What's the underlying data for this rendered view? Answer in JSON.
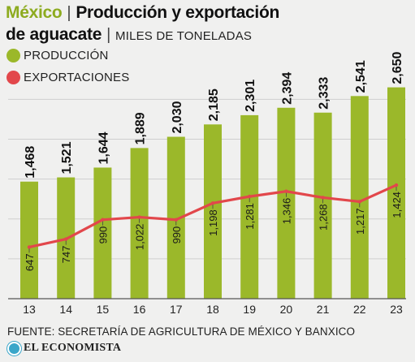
{
  "header": {
    "country": "México",
    "title_part1": "Producción y exportación",
    "title_part2": "de aguacate",
    "unit": "MILES DE TONELADAS"
  },
  "colors": {
    "production": "#9bb82a",
    "exports": "#e2474b",
    "accent": "#8dab1f"
  },
  "legend": [
    {
      "label": "PRODUCCIÓN",
      "color": "#9bb82a"
    },
    {
      "label": "EXPORTACIONES",
      "color": "#e2474b"
    }
  ],
  "chart_data": {
    "type": "bar",
    "categories": [
      "13",
      "14",
      "15",
      "16",
      "17",
      "18",
      "19",
      "20",
      "21",
      "22",
      "23"
    ],
    "series": [
      {
        "name": "PRODUCCIÓN",
        "type": "bar",
        "values": [
          1468,
          1521,
          1644,
          1889,
          2030,
          2185,
          2301,
          2394,
          2333,
          2541,
          2650
        ],
        "labels": [
          "1,468",
          "1,521",
          "1,644",
          "1,889",
          "2,030",
          "2,185",
          "2,301",
          "2,394",
          "2,333",
          "2,541",
          "2,650"
        ]
      },
      {
        "name": "EXPORTACIONES",
        "type": "line",
        "values": [
          647,
          747,
          990,
          1022,
          990,
          1198,
          1281,
          1346,
          1268,
          1217,
          1424
        ],
        "labels": [
          "647",
          "747",
          "990",
          "1,022",
          "990",
          "1,198",
          "1,281",
          "1,346",
          "1,268",
          "1,217",
          "1,424"
        ]
      }
    ],
    "ylim": [
      0,
      2800
    ],
    "grid": true
  },
  "footer": {
    "source": "FUENTE: SECRETARÍA DE AGRICULTURA DE MÉXICO Y BANXICO",
    "logo_text": "EL ECONOMISTA"
  }
}
